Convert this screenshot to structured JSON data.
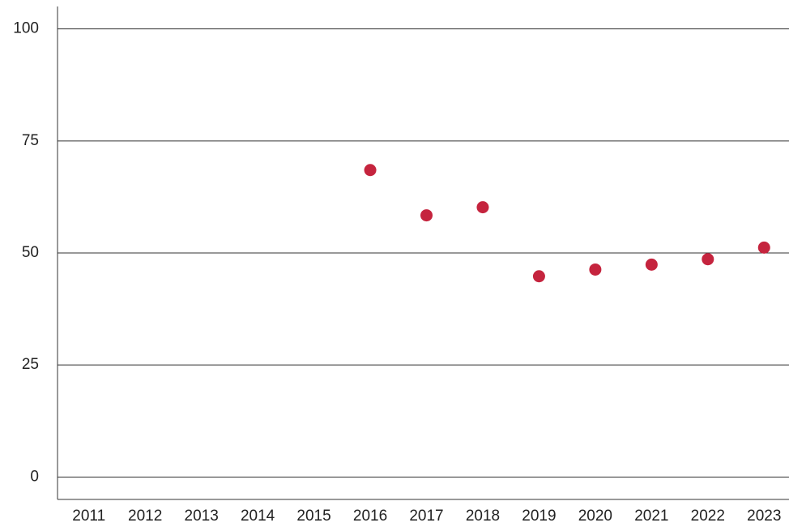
{
  "chart_data": {
    "type": "scatter",
    "categories": [
      "2011",
      "2012",
      "2013",
      "2014",
      "2015",
      "2016",
      "2017",
      "2018",
      "2019",
      "2020",
      "2021",
      "2022",
      "2023"
    ],
    "values": [
      null,
      null,
      null,
      null,
      null,
      68.5,
      58.4,
      60.2,
      44.8,
      46.3,
      47.4,
      48.6,
      51.2
    ],
    "color": "#c5243e",
    "ylim": [
      -5,
      105
    ],
    "yticks": [
      0,
      25,
      50,
      75,
      100
    ],
    "grid": true
  }
}
